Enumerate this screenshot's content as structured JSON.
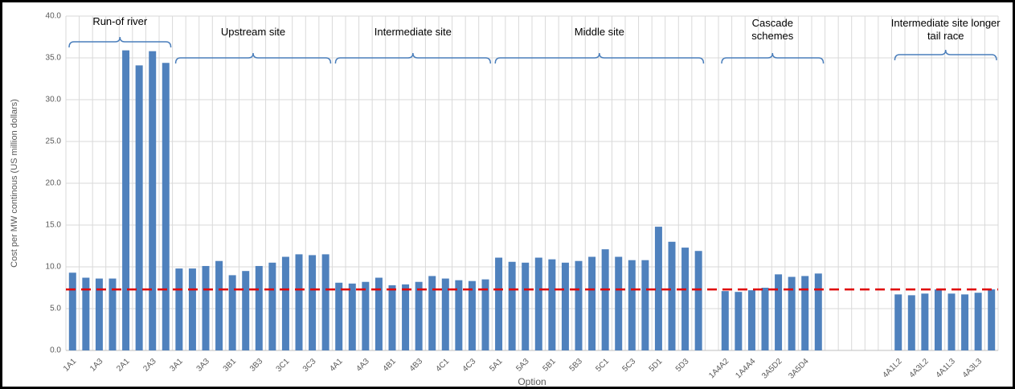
{
  "chart_data": {
    "type": "bar",
    "y_label": "Cost per MW continous (US million dollars)",
    "x_label": "Option",
    "categories": [
      "1A1",
      null,
      "1A3",
      null,
      "2A1",
      null,
      "2A3",
      null,
      "3A1",
      null,
      "3A3",
      null,
      "3B1",
      null,
      "3B3",
      null,
      "3C1",
      null,
      "3C3",
      null,
      "4A1",
      null,
      "4A3",
      null,
      "4B1",
      null,
      "4B3",
      null,
      "4C1",
      null,
      "4C3",
      null,
      "5A1",
      null,
      "5A3",
      null,
      "5B1",
      null,
      "5B3",
      null,
      "5C1",
      null,
      "5C3",
      null,
      "5D1",
      null,
      "5D3",
      null,
      null,
      "1A4A2",
      null,
      "1A4A4",
      null,
      "3A5D2",
      null,
      "3A5D4",
      null,
      null,
      null,
      null,
      null,
      null,
      "4A1L2",
      null,
      "4A3L2",
      null,
      "4A1L3",
      null,
      "4A3L3",
      null
    ],
    "values": [
      9.3,
      8.7,
      8.6,
      8.6,
      35.9,
      34.1,
      35.8,
      34.4,
      9.8,
      9.8,
      10.1,
      10.7,
      9.0,
      9.5,
      10.1,
      10.5,
      11.2,
      11.5,
      11.4,
      11.5,
      8.1,
      8.0,
      8.2,
      8.7,
      7.8,
      7.9,
      8.2,
      8.9,
      8.6,
      8.4,
      8.3,
      8.5,
      11.1,
      10.6,
      10.5,
      11.1,
      10.9,
      10.5,
      10.7,
      11.2,
      12.1,
      11.2,
      10.8,
      10.8,
      14.8,
      13.0,
      12.3,
      11.9,
      null,
      7.1,
      7.0,
      7.2,
      7.5,
      9.1,
      8.8,
      8.9,
      9.2,
      null,
      null,
      null,
      null,
      null,
      6.7,
      6.6,
      6.8,
      7.3,
      6.8,
      6.7,
      6.9,
      7.3
    ],
    "color": "#4f81bd",
    "ylim": [
      0,
      40
    ],
    "yticks": [
      {
        "value": 0,
        "label": "0.0"
      },
      {
        "value": 5,
        "label": "5.0"
      },
      {
        "value": 10,
        "label": "10.0"
      },
      {
        "value": 15,
        "label": "15.0"
      },
      {
        "value": 20,
        "label": "20.0"
      },
      {
        "value": 25,
        "label": "25.0"
      },
      {
        "value": 30,
        "label": "30.0"
      },
      {
        "value": 35,
        "label": "35.0"
      },
      {
        "value": 40,
        "label": "40.0"
      }
    ],
    "grid": true,
    "reference_line": {
      "value": 7.3,
      "color": "#e00000"
    },
    "annotations": [
      "Run-of river",
      "Upstream site",
      "Intermediate site",
      "Middle site",
      "Cascade schemes",
      "Intermediate site longer tail race"
    ]
  }
}
